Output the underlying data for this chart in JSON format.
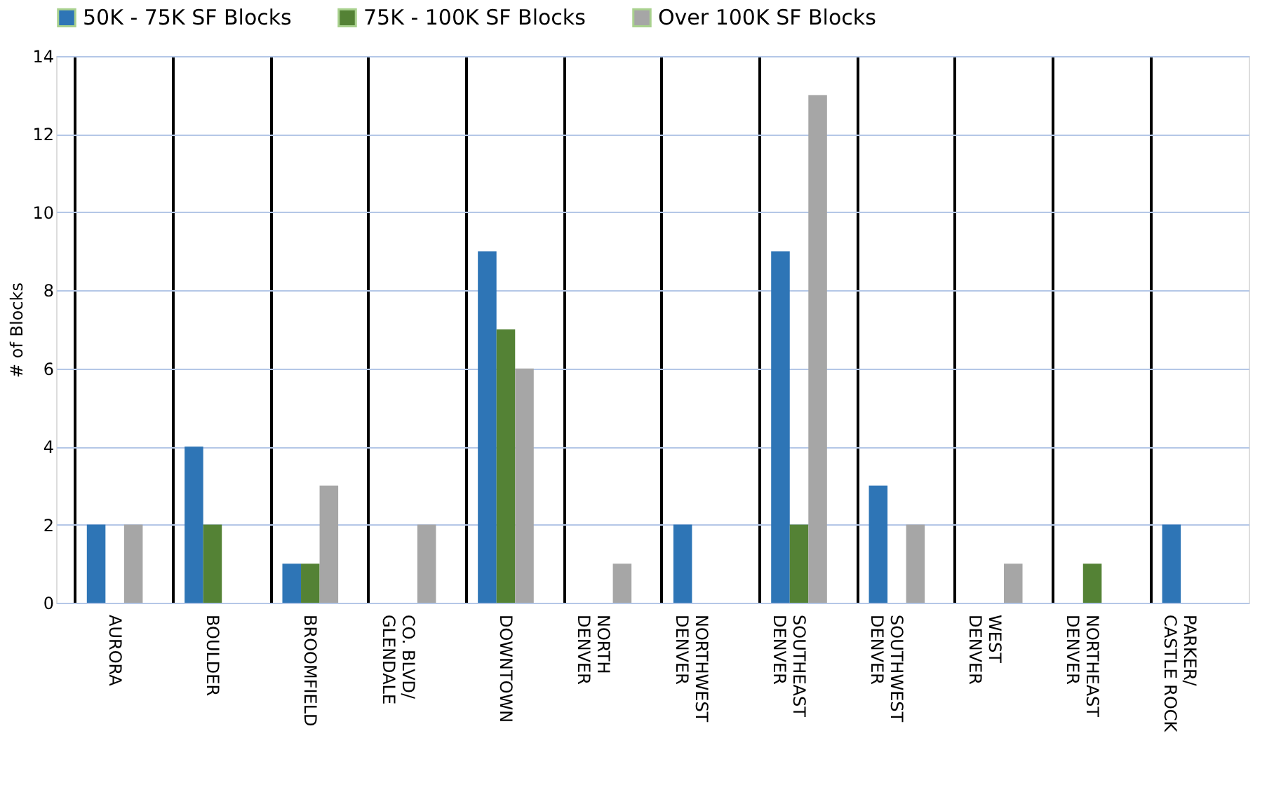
{
  "chart_data": {
    "type": "bar",
    "categories": [
      "AURORA",
      "BOULDER",
      "BROOMFIELD",
      "CO. BLVD/\nGLENDALE",
      "DOWNTOWN",
      "NORTH\nDENVER",
      "NORTHWEST\nDENVER",
      "SOUTHEAST\nDENVER",
      "SOUTHWEST\nDENVER",
      "WEST\nDENVER",
      "NORTHEAST\nDENVER",
      "PARKER/\nCASTLE ROCK"
    ],
    "series": [
      {
        "name": "50K - 75K SF Blocks",
        "color": "#2e75b6",
        "values": [
          2,
          4,
          1,
          0,
          9,
          0,
          2,
          9,
          3,
          0,
          0,
          2
        ]
      },
      {
        "name": "75K - 100K SF Blocks",
        "color": "#548235",
        "values": [
          0,
          2,
          1,
          0,
          7,
          0,
          0,
          2,
          0,
          0,
          1,
          0
        ]
      },
      {
        "name": "Over 100K SF Blocks",
        "color": "#a6a6a6",
        "values": [
          2,
          0,
          3,
          2,
          6,
          1,
          0,
          13,
          2,
          1,
          0,
          0
        ]
      }
    ],
    "ylabel": "# of Blocks",
    "ylim": [
      0,
      14
    ],
    "yticks": [
      0,
      2,
      4,
      6,
      8,
      10,
      12,
      14
    ],
    "grid": true,
    "legend": "top"
  }
}
